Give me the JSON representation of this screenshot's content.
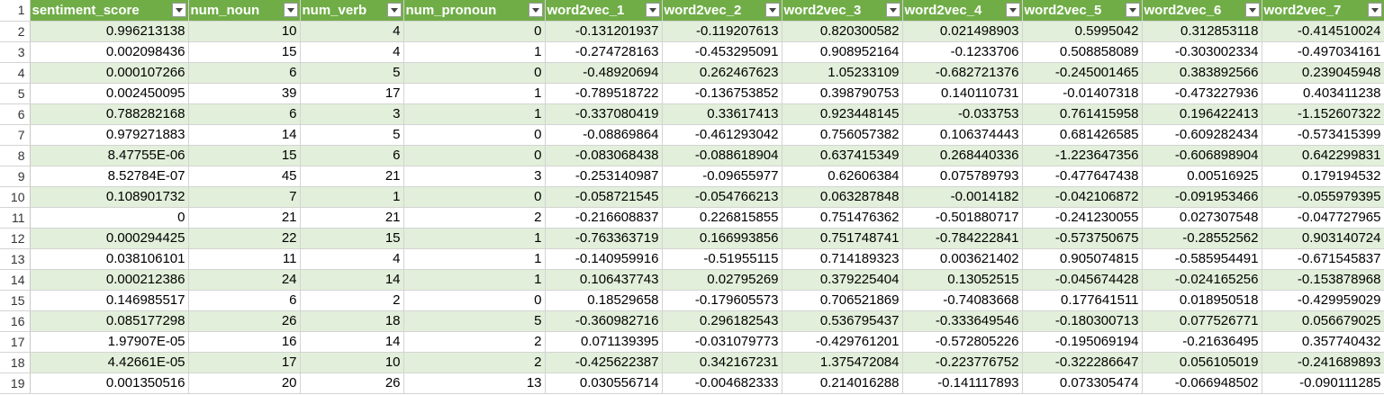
{
  "headers": [
    "sentiment_score",
    "num_noun",
    "num_verb",
    "num_pronoun",
    "word2vec_1",
    "word2vec_2",
    "word2vec_3",
    "word2vec_4",
    "word2vec_5",
    "word2vec_6",
    "word2vec_7"
  ],
  "header_row_number": "1",
  "rows": [
    {
      "n": "2",
      "cells": [
        "0.996213138",
        "10",
        "4",
        "0",
        "-0.131201937",
        "-0.119207613",
        "0.820300582",
        "0.021498903",
        "0.5995042",
        "0.312853118",
        "-0.414510024"
      ]
    },
    {
      "n": "3",
      "cells": [
        "0.002098436",
        "15",
        "4",
        "1",
        "-0.274728163",
        "-0.453295091",
        "0.908952164",
        "-0.1233706",
        "0.508858089",
        "-0.303002334",
        "-0.497034161"
      ]
    },
    {
      "n": "4",
      "cells": [
        "0.000107266",
        "6",
        "5",
        "0",
        "-0.48920694",
        "0.262467623",
        "1.05233109",
        "-0.682721376",
        "-0.245001465",
        "0.383892566",
        "0.239045948"
      ]
    },
    {
      "n": "5",
      "cells": [
        "0.002450095",
        "39",
        "17",
        "1",
        "-0.789518722",
        "-0.136753852",
        "0.398790753",
        "0.140110731",
        "-0.01407318",
        "-0.473227936",
        "0.403411238"
      ]
    },
    {
      "n": "6",
      "cells": [
        "0.788282168",
        "6",
        "3",
        "1",
        "-0.337080419",
        "0.33617413",
        "0.923448145",
        "-0.033753",
        "0.761415958",
        "0.196422413",
        "-1.152607322"
      ]
    },
    {
      "n": "7",
      "cells": [
        "0.979271883",
        "14",
        "5",
        "0",
        "-0.08869864",
        "-0.461293042",
        "0.756057382",
        "0.106374443",
        "0.681426585",
        "-0.609282434",
        "-0.573415399"
      ]
    },
    {
      "n": "8",
      "cells": [
        "8.47755E-06",
        "15",
        "6",
        "0",
        "-0.083068438",
        "-0.088618904",
        "0.637415349",
        "0.268440336",
        "-1.223647356",
        "-0.606898904",
        "0.642299831"
      ]
    },
    {
      "n": "9",
      "cells": [
        "8.52784E-07",
        "45",
        "21",
        "3",
        "-0.253140987",
        "-0.09655977",
        "0.62606384",
        "0.075789793",
        "-0.477647438",
        "0.00516925",
        "0.179194532"
      ]
    },
    {
      "n": "10",
      "cells": [
        "0.108901732",
        "7",
        "1",
        "0",
        "-0.058721545",
        "-0.054766213",
        "0.063287848",
        "-0.0014182",
        "-0.042106872",
        "-0.091953466",
        "-0.055979395"
      ]
    },
    {
      "n": "11",
      "cells": [
        "0",
        "21",
        "21",
        "2",
        "-0.216608837",
        "0.226815855",
        "0.751476362",
        "-0.501880717",
        "-0.241230055",
        "0.027307548",
        "-0.047727965"
      ]
    },
    {
      "n": "12",
      "cells": [
        "0.000294425",
        "22",
        "15",
        "1",
        "-0.763363719",
        "0.166993856",
        "0.751748741",
        "-0.784222841",
        "-0.573750675",
        "-0.28552562",
        "0.903140724"
      ]
    },
    {
      "n": "13",
      "cells": [
        "0.038106101",
        "11",
        "4",
        "1",
        "-0.140959916",
        "-0.51955115",
        "0.714189323",
        "0.003621402",
        "0.905074815",
        "-0.585954491",
        "-0.671545837"
      ]
    },
    {
      "n": "14",
      "cells": [
        "0.000212386",
        "24",
        "14",
        "1",
        "0.106437743",
        "0.02795269",
        "0.379225404",
        "0.13052515",
        "-0.045674428",
        "-0.024165256",
        "-0.153878968"
      ]
    },
    {
      "n": "15",
      "cells": [
        "0.146985517",
        "6",
        "2",
        "0",
        "0.18529658",
        "-0.179605573",
        "0.706521869",
        "-0.74083668",
        "0.177641511",
        "0.018950518",
        "-0.429959029"
      ]
    },
    {
      "n": "16",
      "cells": [
        "0.085177298",
        "26",
        "18",
        "5",
        "-0.360982716",
        "0.296182543",
        "0.536795437",
        "-0.333649546",
        "-0.180300713",
        "0.077526771",
        "0.056679025"
      ]
    },
    {
      "n": "17",
      "cells": [
        "1.97907E-05",
        "16",
        "14",
        "2",
        "0.071139395",
        "-0.031079773",
        "-0.429761201",
        "-0.572805226",
        "-0.195069194",
        "-0.21636495",
        "0.357740432"
      ]
    },
    {
      "n": "18",
      "cells": [
        "4.42661E-05",
        "17",
        "10",
        "2",
        "-0.425622387",
        "0.342167231",
        "1.375472084",
        "-0.223776752",
        "-0.322286647",
        "0.056105019",
        "-0.241689893"
      ]
    },
    {
      "n": "19",
      "cells": [
        "0.001350516",
        "20",
        "26",
        "13",
        "0.030556714",
        "-0.004682333",
        "0.214016288",
        "-0.141117893",
        "0.073305474",
        "-0.066948502",
        "-0.090111285"
      ]
    }
  ],
  "colors": {
    "header_bg": "#70ad47",
    "band_bg": "#e2efda",
    "plain_bg": "#ffffff"
  }
}
